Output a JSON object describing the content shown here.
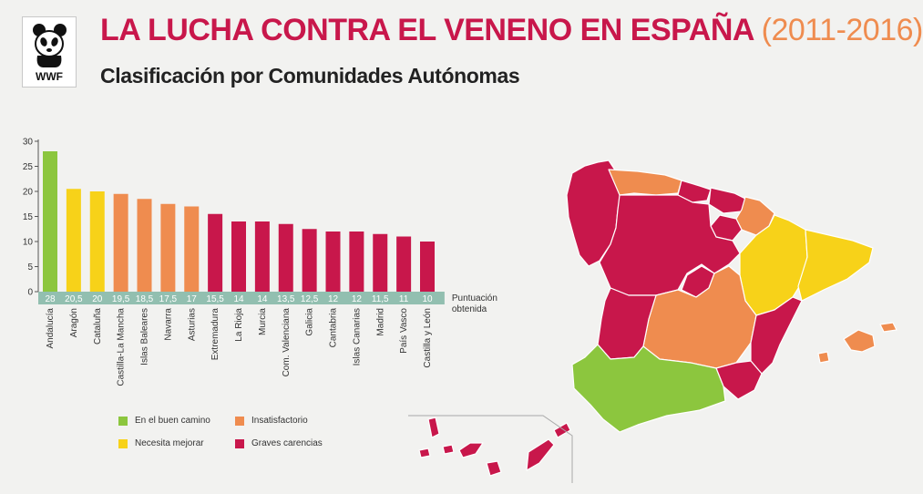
{
  "header": {
    "logo_text": "WWF",
    "title_main": "LA LUCHA CONTRA EL VENENO EN ESPAÑA",
    "title_years": "(2011-2016)",
    "subtitle": "Clasificación por Comunidades Autónomas"
  },
  "colors": {
    "en_el_buen_camino": "#8cc63e",
    "necesita_mejorar": "#f7d219",
    "insatisfactorio": "#ef8c4f",
    "graves_carencias": "#c8174b"
  },
  "chart_data": {
    "type": "bar",
    "title": "Clasificación por Comunidades Autónomas",
    "xlabel": "",
    "ylabel": "",
    "ylim": [
      0,
      30
    ],
    "yticks": [
      0,
      5,
      10,
      15,
      20,
      25,
      30
    ],
    "score_row_label": [
      "Puntuación",
      "obtenida"
    ],
    "categories": [
      "Andalucía",
      "Aragón",
      "Cataluña",
      "Castilla-La Mancha",
      "Islas Baleares",
      "Navarra",
      "Asturias",
      "Extremadura",
      "La Rioja",
      "Murcia",
      "Com. Valenciana",
      "Galicia",
      "Cantabria",
      "Islas Canarias",
      "Madrid",
      "País Vasco",
      "Castilla y León"
    ],
    "values": [
      28,
      20.5,
      20,
      19.5,
      18.5,
      17.5,
      17,
      15.5,
      14,
      14,
      13.5,
      12.5,
      12,
      12,
      11.5,
      11,
      10
    ],
    "value_labels": [
      "28",
      "20,5",
      "20",
      "19,5",
      "18,5",
      "17,5",
      "17",
      "15,5",
      "14",
      "14",
      "13,5",
      "12,5",
      "12",
      "12",
      "11,5",
      "11",
      "10"
    ],
    "classes": [
      "en_el_buen_camino",
      "necesita_mejorar",
      "necesita_mejorar",
      "insatisfactorio",
      "insatisfactorio",
      "insatisfactorio",
      "insatisfactorio",
      "graves_carencias",
      "graves_carencias",
      "graves_carencias",
      "graves_carencias",
      "graves_carencias",
      "graves_carencias",
      "graves_carencias",
      "graves_carencias",
      "graves_carencias",
      "graves_carencias"
    ],
    "legend": [
      {
        "key": "en_el_buen_camino",
        "label": "En el buen camino"
      },
      {
        "key": "insatisfactorio",
        "label": "Insatisfactorio"
      },
      {
        "key": "necesita_mejorar",
        "label": "Necesita mejorar"
      },
      {
        "key": "graves_carencias",
        "label": "Graves carencias"
      }
    ]
  },
  "map": {
    "regions": [
      {
        "name": "Galicia",
        "class": "graves_carencias"
      },
      {
        "name": "Asturias",
        "class": "insatisfactorio"
      },
      {
        "name": "Cantabria",
        "class": "graves_carencias"
      },
      {
        "name": "País Vasco",
        "class": "graves_carencias"
      },
      {
        "name": "Navarra",
        "class": "insatisfactorio"
      },
      {
        "name": "La Rioja",
        "class": "graves_carencias"
      },
      {
        "name": "Castilla y León",
        "class": "graves_carencias"
      },
      {
        "name": "Aragón",
        "class": "necesita_mejorar"
      },
      {
        "name": "Cataluña",
        "class": "necesita_mejorar"
      },
      {
        "name": "Madrid",
        "class": "graves_carencias"
      },
      {
        "name": "Castilla-La Mancha",
        "class": "insatisfactorio"
      },
      {
        "name": "Extremadura",
        "class": "graves_carencias"
      },
      {
        "name": "Com. Valenciana",
        "class": "graves_carencias"
      },
      {
        "name": "Murcia",
        "class": "graves_carencias"
      },
      {
        "name": "Andalucía",
        "class": "en_el_buen_camino"
      },
      {
        "name": "Islas Baleares",
        "class": "insatisfactorio"
      },
      {
        "name": "Islas Canarias",
        "class": "graves_carencias"
      }
    ]
  }
}
